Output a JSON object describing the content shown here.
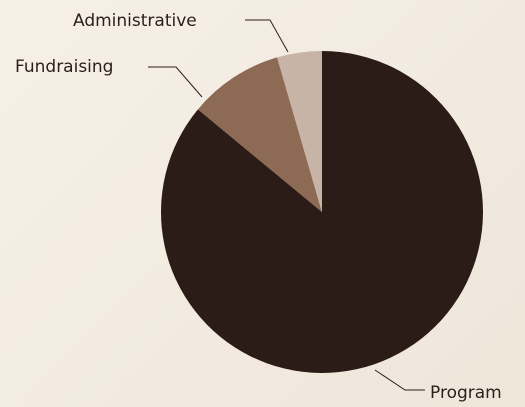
{
  "chart_data": {
    "type": "pie",
    "slices": [
      {
        "label": "Program",
        "value": 86,
        "color": "#2b1c17"
      },
      {
        "label": "Fundraising",
        "value": 9.5,
        "color": "#8c6a54"
      },
      {
        "label": "Administrative",
        "value": 4.5,
        "color": "#c7b4a6"
      }
    ],
    "start_angle_deg": 0,
    "direction": "clockwise",
    "legend": "none"
  }
}
